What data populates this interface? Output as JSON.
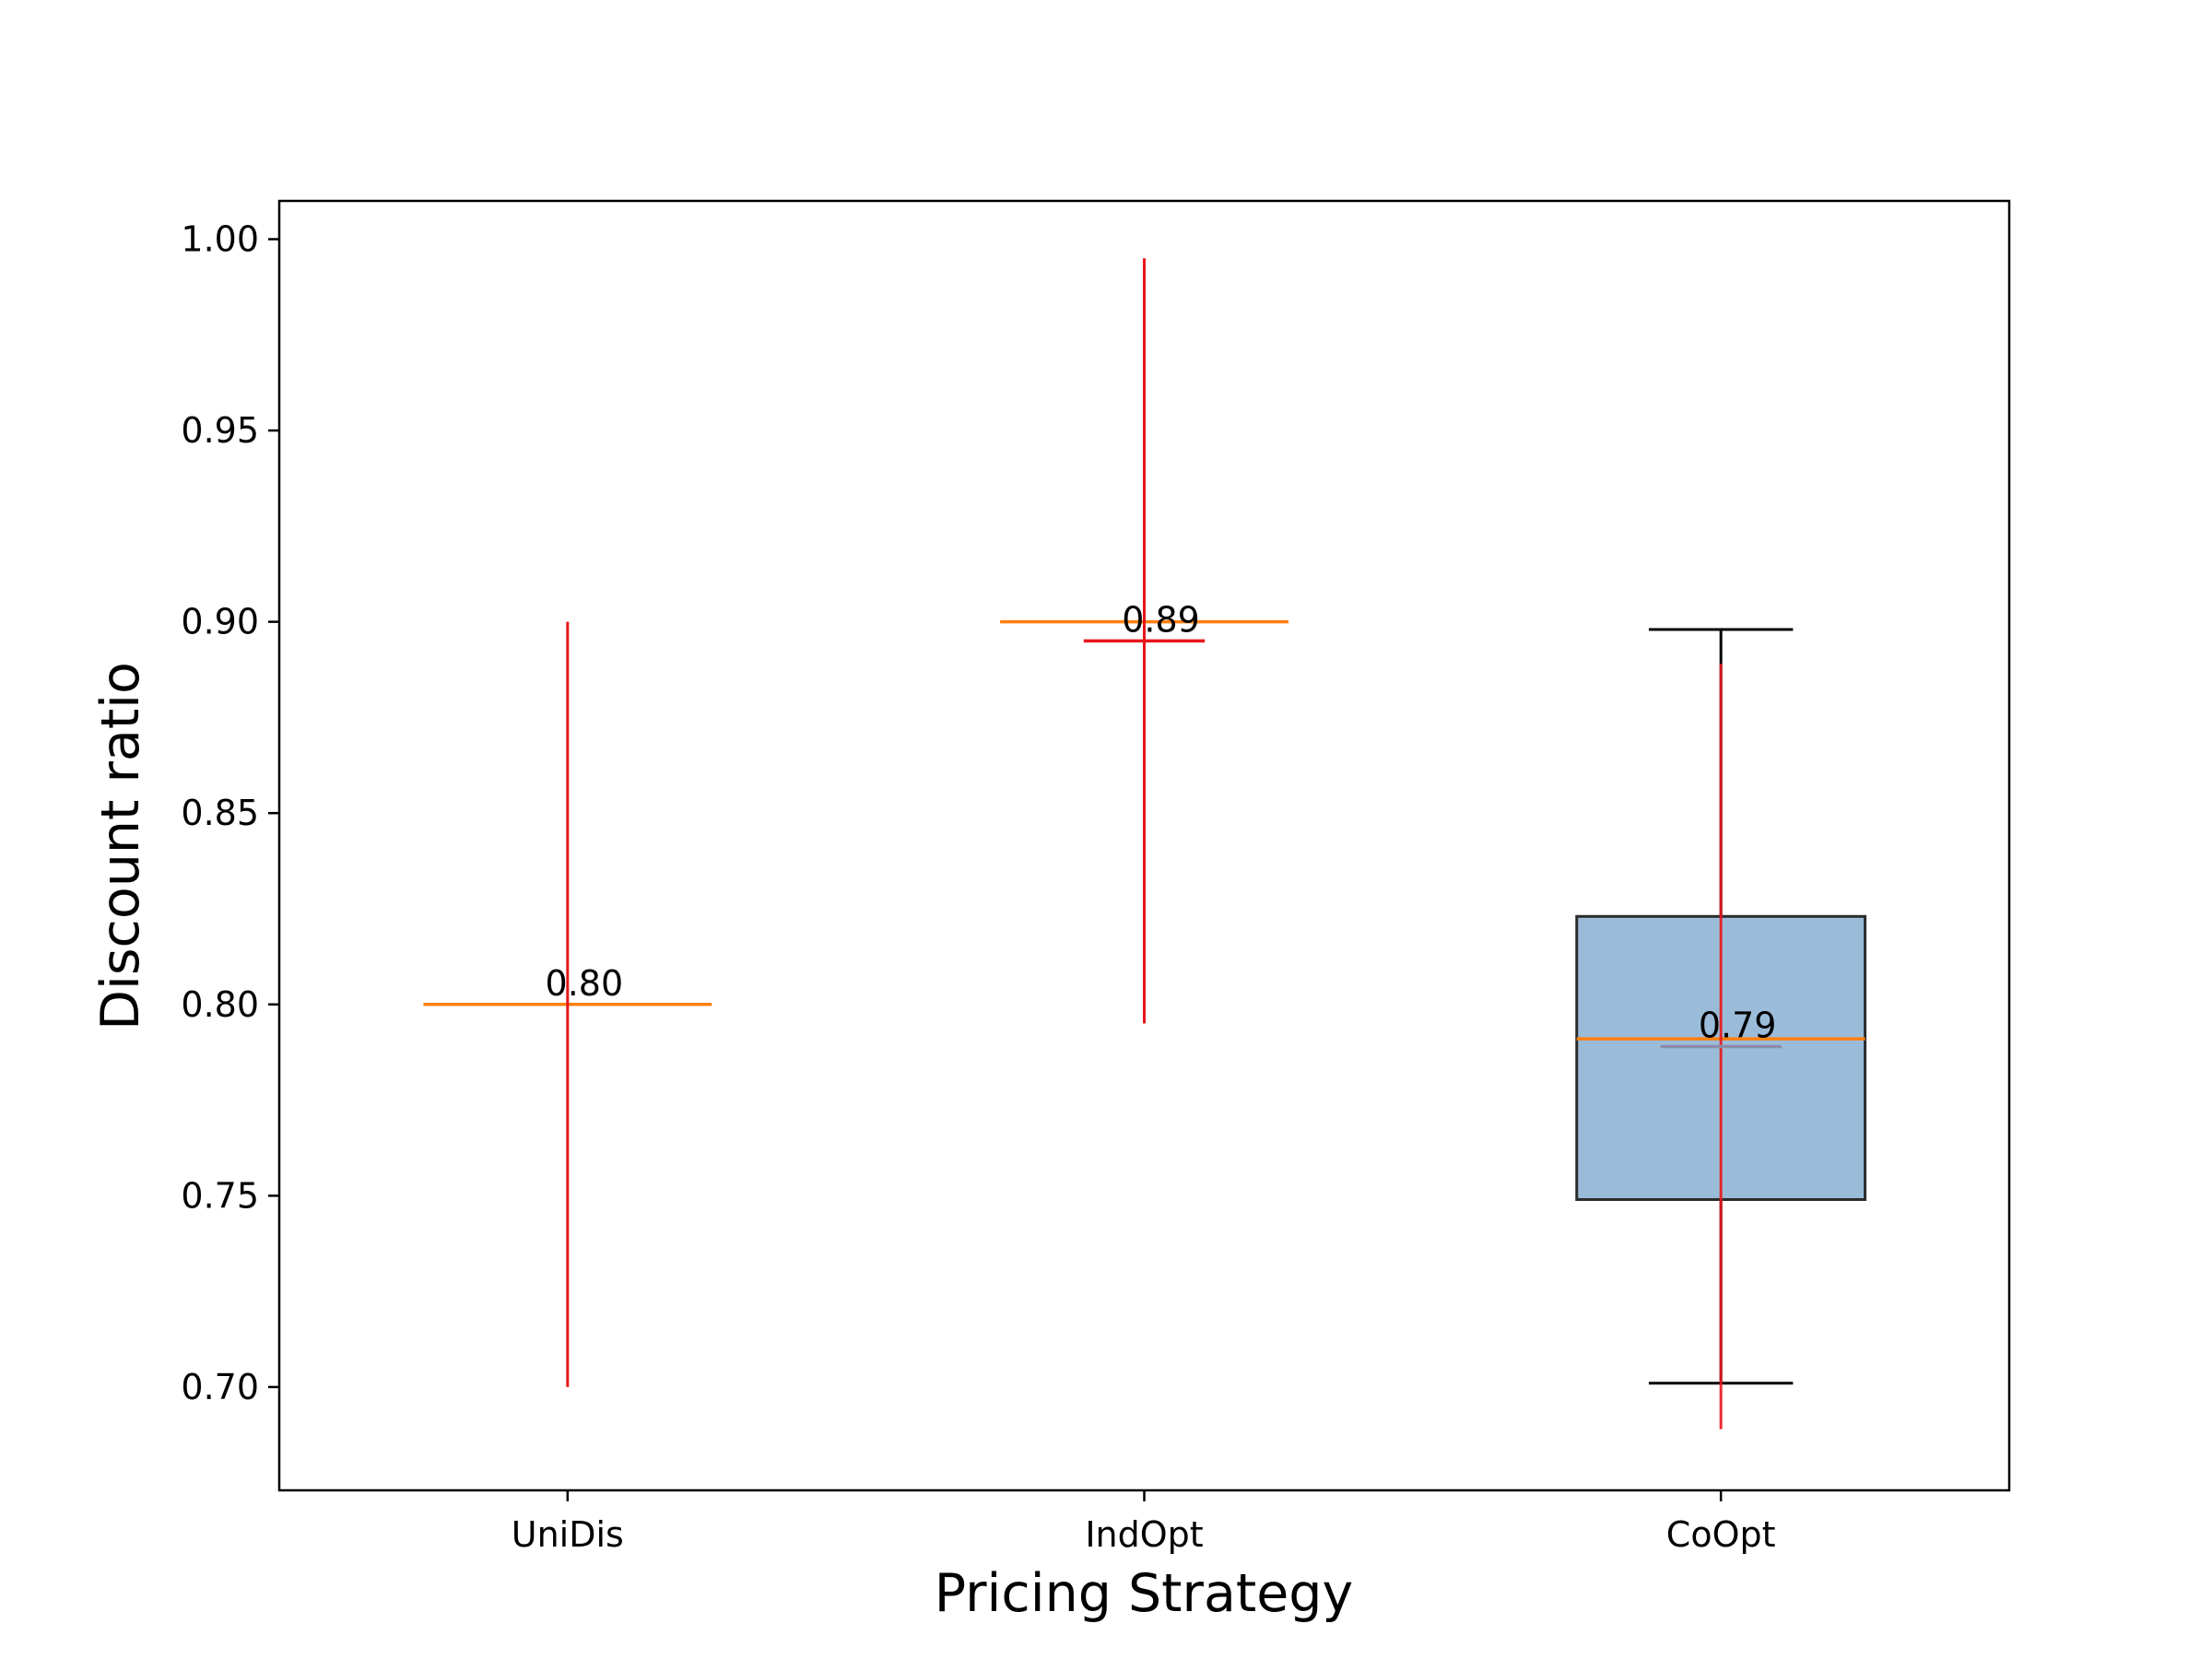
{
  "chart_data": {
    "type": "box",
    "title": "",
    "xlabel": "Pricing Strategy",
    "ylabel": "Discount ratio",
    "ylim": [
      0.673,
      1.01
    ],
    "yticks": [
      0.7,
      0.75,
      0.8,
      0.85,
      0.9,
      0.95,
      1.0
    ],
    "ytick_labels": [
      "0.70",
      "0.75",
      "0.80",
      "0.85",
      "0.90",
      "0.95",
      "1.00"
    ],
    "grid": false,
    "categories": [
      "UniDis",
      "IndOpt",
      "CoOpt"
    ],
    "boxes": [
      {
        "name": "UniDis",
        "whisker_low": 0.8,
        "q1": 0.8,
        "median": 0.8,
        "q3": 0.8,
        "whisker_high": 0.8,
        "has_box": false,
        "errorbar": {
          "mean": 0.8,
          "low": 0.7,
          "high": 0.9,
          "cap": false
        },
        "label": "0.80"
      },
      {
        "name": "IndOpt",
        "whisker_low": 0.9,
        "q1": 0.9,
        "median": 0.9,
        "q3": 0.9,
        "whisker_high": 0.9,
        "has_box": false,
        "errorbar": {
          "mean": 0.895,
          "low": 0.795,
          "high": 0.995,
          "cap": true
        },
        "label": "0.89"
      },
      {
        "name": "CoOpt",
        "whisker_low": 0.701,
        "q1": 0.749,
        "median": 0.791,
        "q3": 0.823,
        "whisker_high": 0.898,
        "has_box": true,
        "errorbar": {
          "mean": 0.789,
          "low": 0.689,
          "high": 0.889,
          "cap": true
        },
        "label": "0.79"
      }
    ],
    "colors": {
      "box_fill": "#9bbcd9",
      "box_edge": "#2b2b2b",
      "median": "#ff7f0e",
      "errorbar": "#e8161b",
      "mean_cap_coopt": "#8c8ca8",
      "whisker": "#000000",
      "axes": "#000000"
    }
  }
}
